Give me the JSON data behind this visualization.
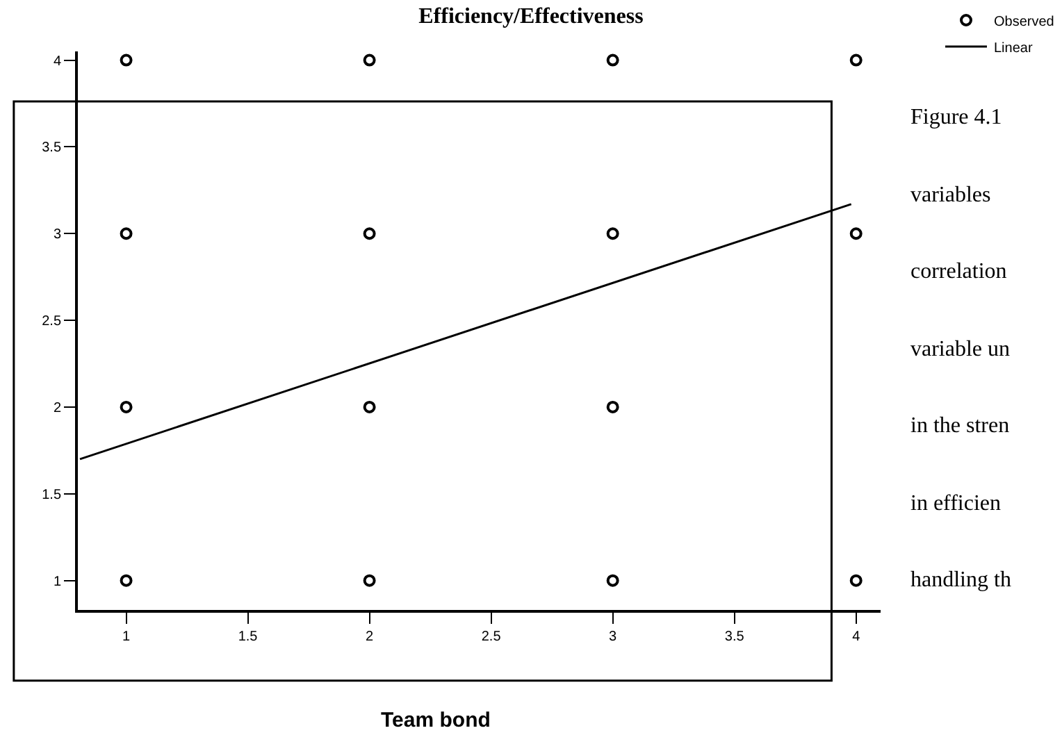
{
  "chart_data": {
    "type": "scatter",
    "title": "Efficiency/Effectiveness",
    "xlabel": "Team bond",
    "xlim": [
      0.8,
      4.1
    ],
    "ylim": [
      0.83,
      4.05
    ],
    "xticks": [
      1,
      1.5,
      2,
      2.5,
      3,
      3.5,
      4
    ],
    "yticks": [
      1,
      1.5,
      2,
      2.5,
      3,
      3.5,
      4
    ],
    "grid": false,
    "legend": "top right",
    "series": [
      {
        "name": "Observed",
        "marker": "circle",
        "color": "#000000",
        "x": [
          1,
          1,
          1,
          1,
          2,
          2,
          2,
          2,
          3,
          3,
          3,
          3,
          4,
          4,
          4
        ],
        "values": [
          4,
          3,
          2,
          1,
          4,
          3,
          2,
          1,
          4,
          3,
          2,
          1,
          4,
          3,
          1
        ]
      },
      {
        "name": "Linear",
        "type": "line",
        "marker": "none",
        "color": "#000000",
        "x": [
          0.81,
          3.98
        ],
        "values": [
          1.7,
          3.17
        ]
      }
    ],
    "annotations": [
      "Figure 4.1",
      "variables",
      "correlation",
      "variable un",
      "in the stren",
      "in efficien",
      "handling th"
    ]
  }
}
